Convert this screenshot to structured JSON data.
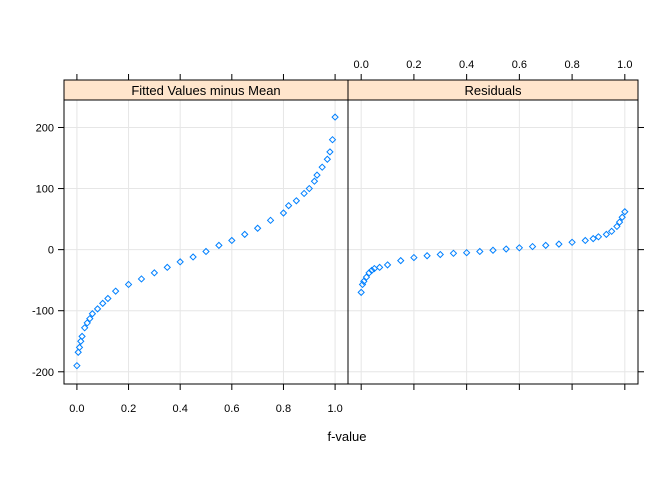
{
  "chart_data": {
    "type": "scatter",
    "xlabel": "f-value",
    "ylabel": "",
    "xlim": [
      -0.05,
      1.05
    ],
    "ylim": [
      -220,
      245
    ],
    "x_ticks": [
      "0.0",
      "0.2",
      "0.4",
      "0.6",
      "0.8",
      "1.0"
    ],
    "x_tick_values": [
      0.0,
      0.2,
      0.4,
      0.6,
      0.8,
      1.0
    ],
    "y_ticks": [
      "-200",
      "-100",
      "0",
      "100",
      "200"
    ],
    "y_tick_values": [
      -200,
      -100,
      0,
      100,
      200
    ],
    "grid": true,
    "marker_color": "#0080ff",
    "strip_color": "#ffe5cc",
    "panels": [
      {
        "title": "Fitted Values minus Mean",
        "x": [
          0.0,
          0.005,
          0.01,
          0.015,
          0.02,
          0.03,
          0.04,
          0.05,
          0.06,
          0.08,
          0.1,
          0.12,
          0.15,
          0.2,
          0.25,
          0.3,
          0.35,
          0.4,
          0.45,
          0.5,
          0.55,
          0.6,
          0.65,
          0.7,
          0.75,
          0.8,
          0.82,
          0.85,
          0.88,
          0.9,
          0.92,
          0.93,
          0.95,
          0.97,
          0.98,
          0.99,
          1.0
        ],
        "y": [
          -190,
          -168,
          -160,
          -150,
          -142,
          -128,
          -120,
          -113,
          -105,
          -97,
          -88,
          -80,
          -68,
          -57,
          -48,
          -38,
          -29,
          -20,
          -12,
          -3,
          7,
          15,
          25,
          35,
          48,
          60,
          72,
          80,
          92,
          100,
          112,
          122,
          135,
          148,
          160,
          180,
          217
        ]
      },
      {
        "title": "Residuals",
        "x": [
          0.0,
          0.005,
          0.01,
          0.02,
          0.03,
          0.04,
          0.05,
          0.07,
          0.1,
          0.15,
          0.2,
          0.25,
          0.3,
          0.35,
          0.4,
          0.45,
          0.5,
          0.55,
          0.6,
          0.65,
          0.7,
          0.75,
          0.8,
          0.85,
          0.88,
          0.9,
          0.93,
          0.95,
          0.97,
          0.98,
          0.99,
          1.0
        ],
        "y": [
          -70,
          -57,
          -52,
          -45,
          -38,
          -34,
          -31,
          -29,
          -25,
          -18,
          -13,
          -10,
          -8,
          -6,
          -5,
          -3,
          -1,
          1,
          3,
          5,
          7,
          9,
          12,
          15,
          18,
          21,
          25,
          30,
          38,
          45,
          53,
          62
        ]
      }
    ]
  }
}
